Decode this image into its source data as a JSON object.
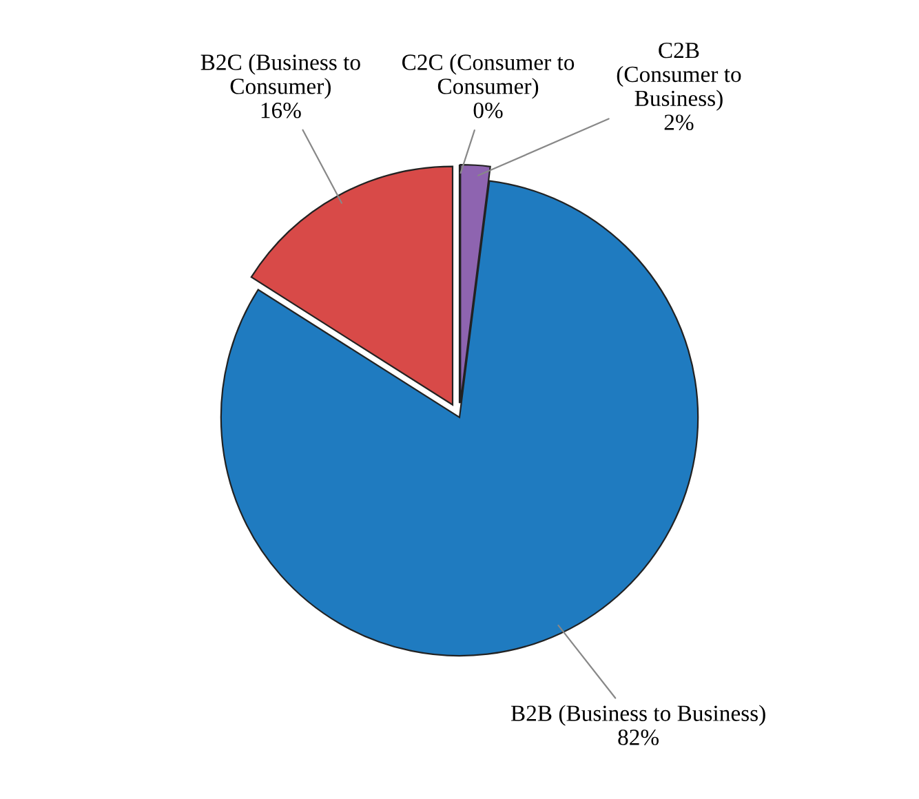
{
  "chart_data": {
    "type": "pie",
    "categories": [
      "C2C (Consumer to Consumer)",
      "C2B (Consumer to Business)",
      "B2B (Business to Business)",
      "B2C (Business to Consumer)"
    ],
    "values": [
      0,
      2,
      82,
      16
    ],
    "value_labels": [
      "0%",
      "2%",
      "82%",
      "16%"
    ],
    "colors": [
      "#c9c9c9",
      "#8e64b0",
      "#1f7bc0",
      "#d84a48"
    ]
  }
}
